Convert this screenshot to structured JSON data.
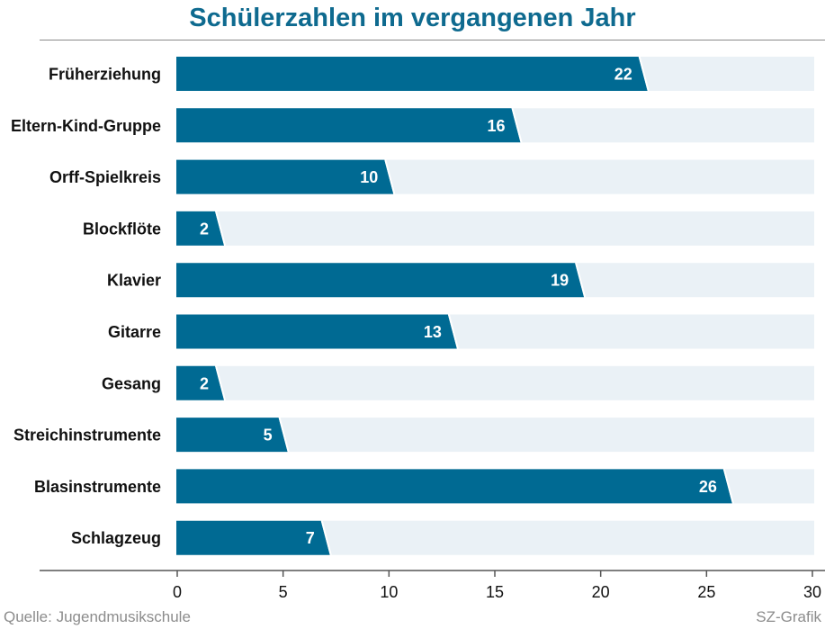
{
  "title": "Schülerzahlen im vergangenen Jahr",
  "source": "Quelle: Jugendmusikschule",
  "credit": "SZ-Grafik",
  "colors": {
    "bar": "#006a93",
    "track": "#eaf1f6",
    "title": "#0e6a8f"
  },
  "chart_data": {
    "type": "bar",
    "orientation": "horizontal",
    "categories": [
      "Früherziehung",
      "Eltern-Kind-Gruppe",
      "Orff-Spielkreis",
      "Blockflöte",
      "Klavier",
      "Gitarre",
      "Gesang",
      "Streichinstrumente",
      "Blasinstrumente",
      "Schlagzeug"
    ],
    "values": [
      22,
      16,
      10,
      2,
      19,
      13,
      2,
      5,
      26,
      7
    ],
    "xlim": [
      0,
      30
    ],
    "xticks": [
      0,
      5,
      10,
      15,
      20,
      25,
      30
    ],
    "grid": false
  }
}
